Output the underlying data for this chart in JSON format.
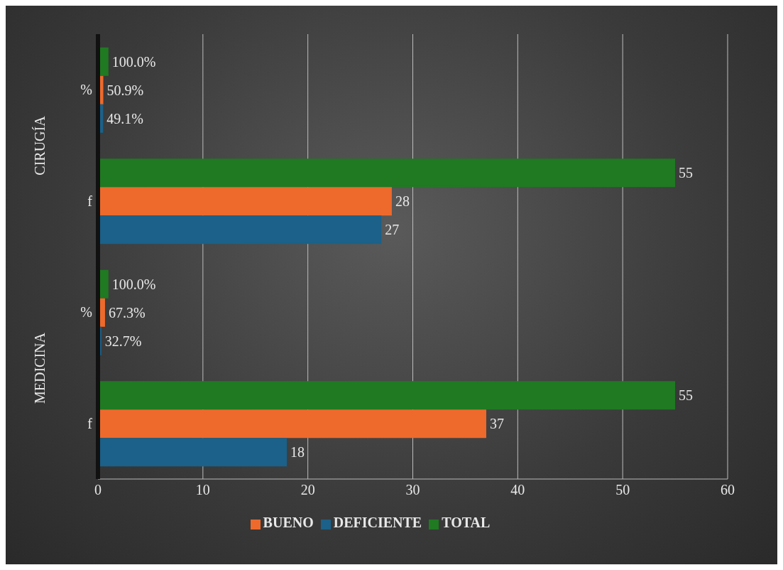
{
  "chart_data": {
    "type": "bar",
    "orientation": "horizontal",
    "categories": [
      "%",
      "f",
      "%",
      "f"
    ],
    "series": [
      {
        "name": "TOTAL",
        "color": "#1f7a22",
        "values": [
          1.0,
          55,
          1.0,
          55
        ],
        "value_labels": [
          "100.0%",
          "55",
          "100.0%",
          "55"
        ]
      },
      {
        "name": "BUENO",
        "color": "#ee6a2c",
        "values": [
          0.509,
          28,
          0.673,
          37
        ],
        "value_labels": [
          "50.9%",
          "28",
          "67.3%",
          "37"
        ]
      },
      {
        "name": "DEFICIENTE",
        "color": "#1b6189",
        "values": [
          0.491,
          27,
          0.327,
          18
        ],
        "value_labels": [
          "49.1%",
          "27",
          "32.7%",
          "18"
        ]
      }
    ],
    "annotations": [
      "CIRUGÍA",
      "MEDICINA"
    ],
    "xlim": [
      0,
      60
    ],
    "xticks": [
      0,
      10,
      20,
      30,
      40,
      50,
      60
    ],
    "grid": "x",
    "legend": "bottom"
  }
}
